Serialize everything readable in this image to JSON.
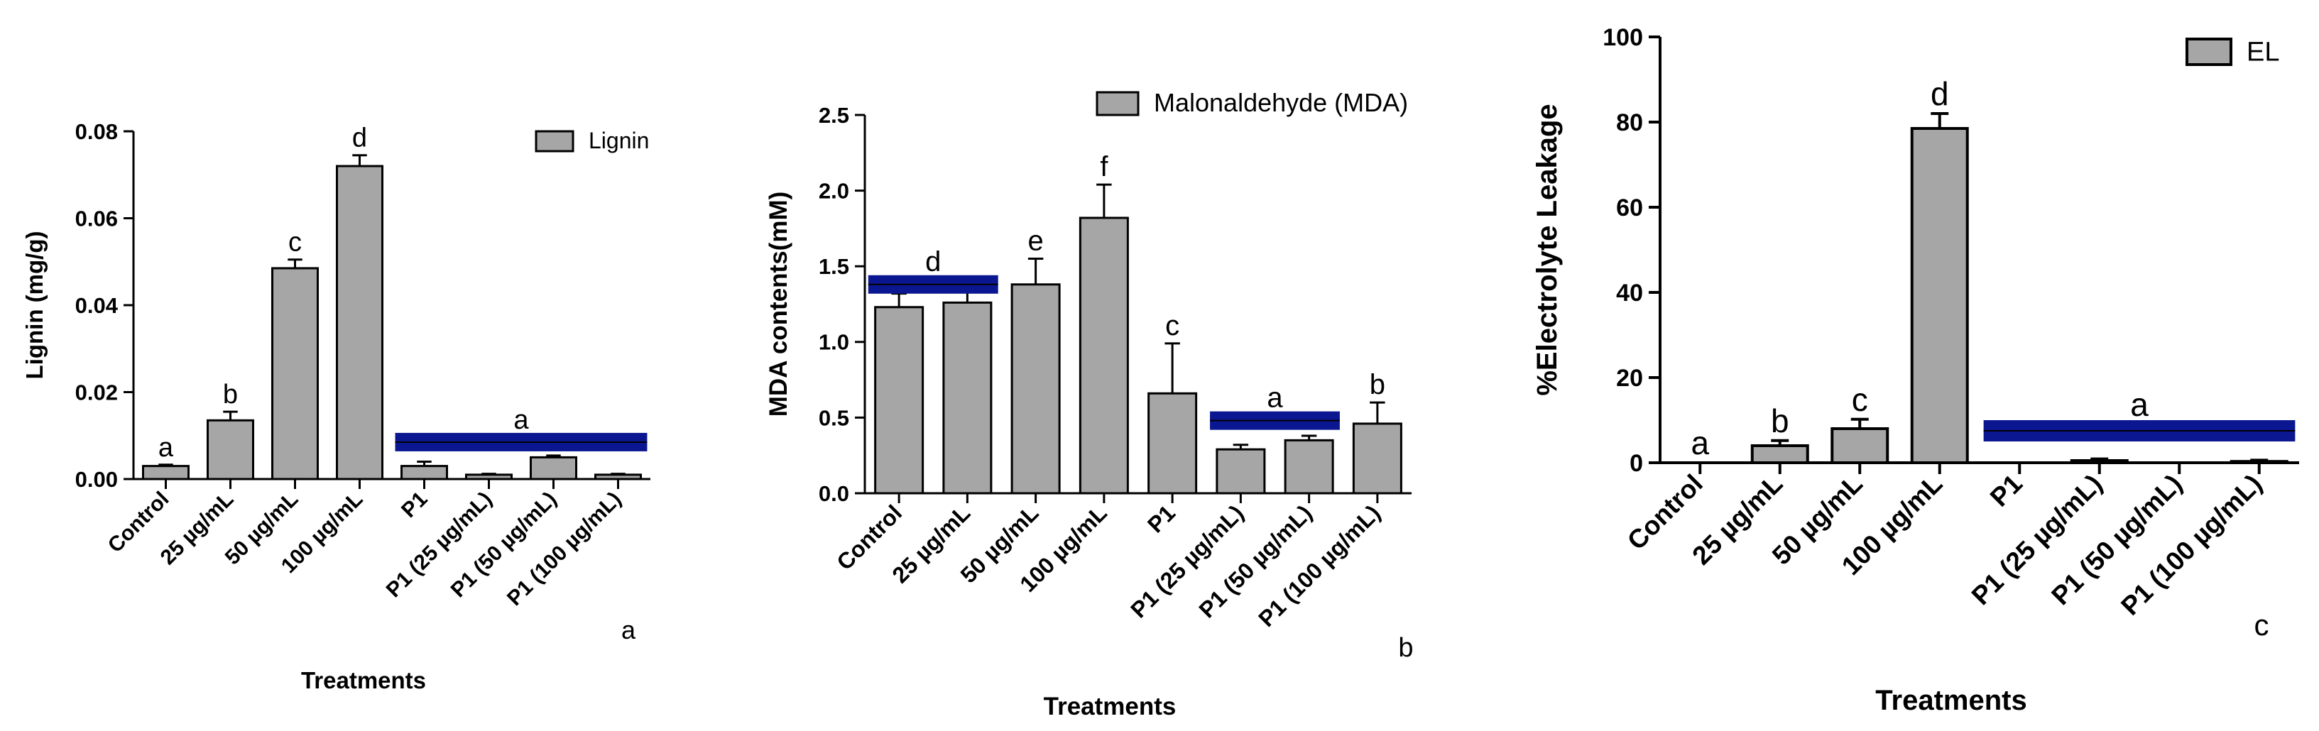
{
  "colors": {
    "bar": "#a6a6a7",
    "stroke": "#000000",
    "highlight": "#0a1790"
  },
  "chart_data": [
    {
      "type": "bar",
      "panel_label": "a",
      "title": "",
      "xlabel": "Treatments",
      "ylabel": "Lignin (mg/g)",
      "legend": "Lignin",
      "legend_position": "top-right",
      "ylim": [
        0,
        0.08
      ],
      "yticks": [
        0,
        0.02,
        0.04,
        0.06,
        0.08
      ],
      "ytick_labels": [
        "0.00",
        "0.02",
        "0.04",
        "0.06",
        "0.08"
      ],
      "categories": [
        "Control",
        "25 µg/mL",
        "50 µg/mL",
        "100 µg/mL",
        "P1",
        "P1 (25 µg/mL)",
        "P1 (50 µg/mL)",
        "P1 (100 µg/mL)"
      ],
      "values": [
        0.003,
        0.0135,
        0.0485,
        0.072,
        0.003,
        0.001,
        0.005,
        0.001
      ],
      "errors": [
        0.0003,
        0.002,
        0.002,
        0.0025,
        0.001,
        0.0002,
        0.0004,
        0.0002
      ],
      "letters": [
        "a",
        "b",
        "c",
        "d",
        "",
        "",
        "",
        ""
      ],
      "group_label": {
        "text": "a",
        "from": 4,
        "to": 7,
        "value": 0.0085
      }
    },
    {
      "type": "bar",
      "panel_label": "b",
      "title": "",
      "xlabel": "Treatments",
      "ylabel": "MDA contents(mM)",
      "legend": "Malonaldehyde (MDA)",
      "legend_position": "top-right",
      "ylim": [
        0,
        2.5
      ],
      "yticks": [
        0,
        0.5,
        1,
        1.5,
        2,
        2.5
      ],
      "ytick_labels": [
        "0.0",
        "0.5",
        "1.0",
        "1.5",
        "2.0",
        "2.5"
      ],
      "categories": [
        "Control",
        "25 µg/mL",
        "50 µg/mL",
        "100 µg/mL",
        "P1",
        "P1 (25 µg/mL)",
        "P1 (50 µg/mL)",
        "P1 (100 µg/mL)"
      ],
      "values": [
        1.23,
        1.26,
        1.38,
        1.82,
        0.66,
        0.29,
        0.35,
        0.46
      ],
      "errors": [
        0.09,
        0.07,
        0.17,
        0.22,
        0.33,
        0.03,
        0.03,
        0.14
      ],
      "letters": [
        "",
        "",
        "e",
        "f",
        "c",
        "",
        "",
        "b"
      ],
      "group_labels": [
        {
          "text": "d",
          "from": 0,
          "to": 1,
          "value": 1.38
        },
        {
          "text": "a",
          "from": 5,
          "to": 6,
          "value": 0.48
        }
      ]
    },
    {
      "type": "bar",
      "panel_label": "c",
      "title": "",
      "xlabel": "Treatments",
      "ylabel": "%Electrolyte Leakage",
      "legend": "EL",
      "legend_position": "top-right",
      "ylim": [
        0,
        100
      ],
      "yticks": [
        0,
        20,
        40,
        60,
        80,
        100
      ],
      "ytick_labels": [
        "0",
        "20",
        "40",
        "60",
        "80",
        "100"
      ],
      "categories": [
        "Control",
        "25 µg/mL",
        "50 µg/mL",
        "100 µg/mL",
        "P1",
        "P1 (25 µg/mL)",
        "P1 (50 µg/mL)",
        "P1 (100 µg/mL)"
      ],
      "values": [
        0,
        4,
        8,
        78.5,
        0,
        0.5,
        0,
        0.3
      ],
      "errors": [
        0,
        1.2,
        2.2,
        3.5,
        0,
        0.4,
        0,
        0.3
      ],
      "letters": [
        "a",
        "b",
        "c",
        "d",
        "",
        "",
        "",
        ""
      ],
      "group_label": {
        "text": "a",
        "from": 4,
        "to": 7,
        "value": 7.5
      }
    }
  ]
}
